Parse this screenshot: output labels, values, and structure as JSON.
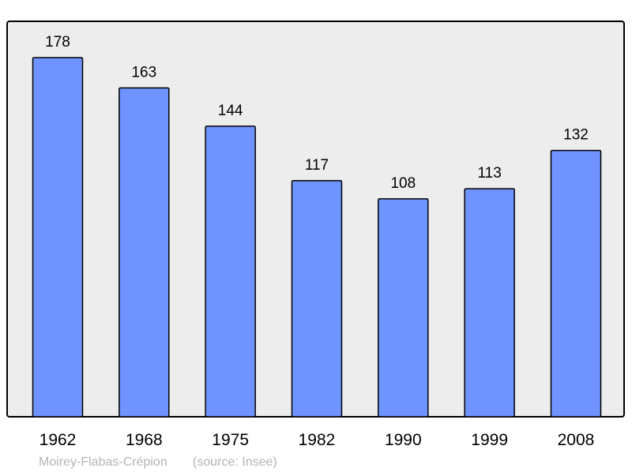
{
  "chart_data": {
    "type": "bar",
    "categories": [
      "1962",
      "1968",
      "1975",
      "1982",
      "1990",
      "1999",
      "2008"
    ],
    "values": [
      178,
      163,
      144,
      117,
      108,
      113,
      132
    ],
    "ylim": [
      0,
      196
    ],
    "grid": false,
    "bar_color": "#7094ff",
    "background_color": "#ededed",
    "footer": {
      "place": "Moirey-Flabas-Crépion",
      "source": "(source: Insee)"
    }
  }
}
